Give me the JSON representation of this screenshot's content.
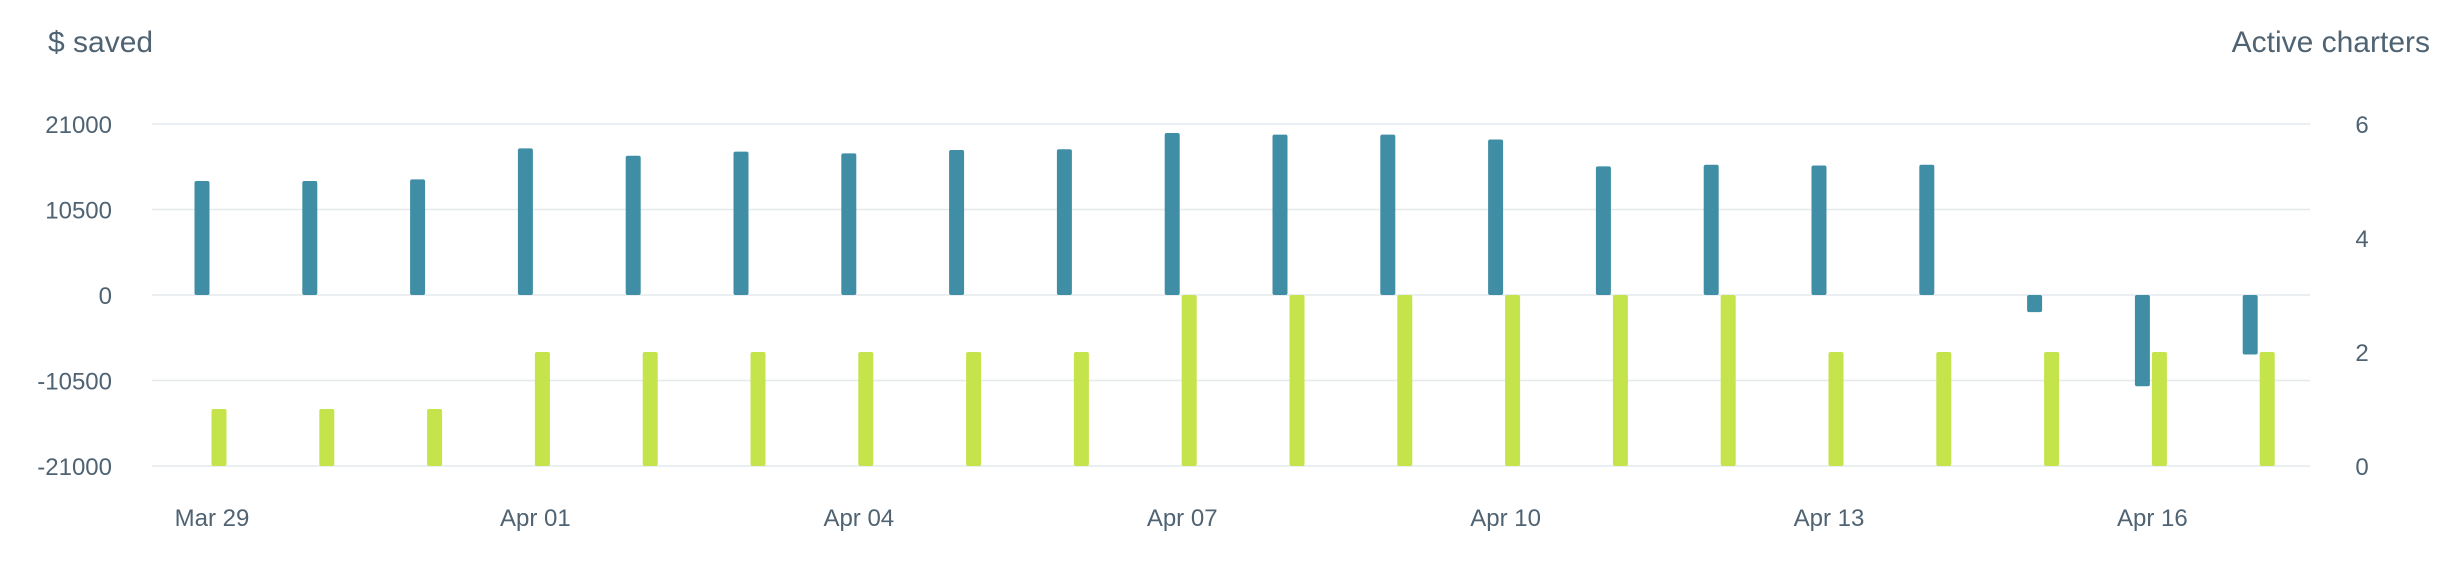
{
  "chart_data": {
    "type": "bar",
    "title": "",
    "left_axis_label": "$ saved",
    "right_axis_label": "Active charters",
    "ylim_left": [
      -21000,
      21000
    ],
    "ylim_right": [
      0,
      6
    ],
    "yticks_left": [
      "21000",
      "10500",
      "0",
      "-10500",
      "-21000"
    ],
    "yticks_right": [
      "6",
      "4",
      "2",
      "0"
    ],
    "x_tick_labels": [
      {
        "index": 0,
        "label": "Mar 29"
      },
      {
        "index": 3,
        "label": "Apr 01"
      },
      {
        "index": 6,
        "label": "Apr 04"
      },
      {
        "index": 9,
        "label": "Apr 07"
      },
      {
        "index": 12,
        "label": "Apr 10"
      },
      {
        "index": 15,
        "label": "Apr 13"
      },
      {
        "index": 18,
        "label": "Apr 16"
      }
    ],
    "categories": [
      "2024-03-29",
      "2024-03-30",
      "2024-03-31",
      "2024-04-01",
      "2024-04-02",
      "2024-04-03",
      "2024-04-04",
      "2024-04-05",
      "2024-04-06",
      "2024-04-07",
      "2024-04-08",
      "2024-04-09",
      "2024-04-10",
      "2024-04-11",
      "2024-04-12",
      "2024-04-13",
      "2024-04-14",
      "2024-04-15",
      "2024-04-16",
      "2024-04-17"
    ],
    "grid": true,
    "legend": "none",
    "series": [
      {
        "axis": "left",
        "color": "#3f8ea6",
        "values": [
          14000,
          14000,
          14200,
          18000,
          17100,
          17600,
          17400,
          17800,
          17900,
          19900,
          19700,
          19700,
          19100,
          15800,
          16000,
          15900,
          16000,
          -2100,
          -11200,
          -7300
        ]
      },
      {
        "axis": "right",
        "color": "#c5e34a",
        "values": [
          1,
          1,
          1,
          2,
          2,
          2,
          2,
          2,
          2,
          3,
          3,
          3,
          3,
          3,
          3,
          2,
          2,
          2,
          2,
          2
        ]
      }
    ]
  }
}
